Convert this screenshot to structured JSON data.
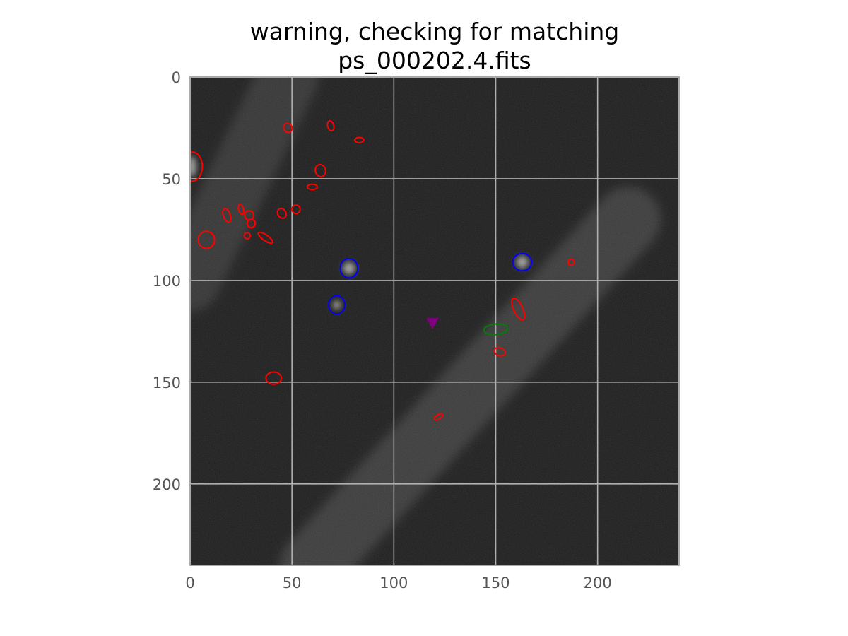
{
  "chart_data": {
    "type": "scatter",
    "subtype": "image-with-ellipse-overlays",
    "title_lines": [
      "warning, checking for matching",
      "ps_000202.4.fits"
    ],
    "xlabel": "",
    "ylabel": "",
    "xlim": [
      0,
      240
    ],
    "ylim": [
      240,
      0
    ],
    "y_axis_inverted": true,
    "grid": true,
    "legend": "none",
    "x_ticks": [
      0,
      50,
      100,
      150,
      200
    ],
    "y_ticks": [
      0,
      50,
      100,
      150,
      200
    ],
    "x_tick_labels": [
      "0",
      "50",
      "100",
      "150",
      "200"
    ],
    "y_tick_labels": [
      "0",
      "50",
      "100",
      "150",
      "200"
    ],
    "colors": {
      "background": "#1b1b1b",
      "grid": "#b0b0b0",
      "spine": "#aaaaaa",
      "red_series": "#ff0000",
      "blue_series": "#0000ff",
      "green_series": "#008000",
      "marker": "#800080"
    },
    "bright_sources": [
      {
        "x": 1,
        "y": 44,
        "sx": 2,
        "sy": 5
      },
      {
        "x": 78,
        "y": 94,
        "sx": 3,
        "sy": 3
      },
      {
        "x": 163,
        "y": 91,
        "sx": 3,
        "sy": 3
      },
      {
        "x": 72,
        "y": 112,
        "sx": 2,
        "sy": 2
      }
    ],
    "streaks": [
      {
        "from": [
          48,
          0
        ],
        "to": [
          0,
          100
        ],
        "width": 30,
        "opacity": 0.1
      },
      {
        "from": [
          215,
          70
        ],
        "to": [
          60,
          240
        ],
        "width": 32,
        "opacity": 0.13
      }
    ],
    "series": [
      {
        "color": "red",
        "ellipses": [
          {
            "x": 48,
            "y": 25,
            "rx": 2,
            "ry": 2.3,
            "angle": -25
          },
          {
            "x": 69,
            "y": 24,
            "rx": 1.5,
            "ry": 2.5,
            "angle": -15
          },
          {
            "x": 83,
            "y": 31,
            "rx": 2.2,
            "ry": 1.3,
            "angle": 0
          },
          {
            "x": 1,
            "y": 44,
            "rx": 5,
            "ry": 7.2,
            "angle": 0
          },
          {
            "x": 64,
            "y": 46,
            "rx": 2.5,
            "ry": 3,
            "angle": -15
          },
          {
            "x": 60,
            "y": 54,
            "rx": 2.5,
            "ry": 1.3,
            "angle": 0
          },
          {
            "x": 18,
            "y": 68,
            "rx": 1.7,
            "ry": 3.5,
            "angle": -20
          },
          {
            "x": 25,
            "y": 65,
            "rx": 1.2,
            "ry": 2.6,
            "angle": -15
          },
          {
            "x": 29,
            "y": 68,
            "rx": 2.2,
            "ry": 2.3,
            "angle": 0
          },
          {
            "x": 30,
            "y": 72,
            "rx": 2,
            "ry": 2,
            "angle": 0
          },
          {
            "x": 45,
            "y": 67,
            "rx": 2,
            "ry": 2.5,
            "angle": -30
          },
          {
            "x": 52,
            "y": 65,
            "rx": 2,
            "ry": 2.1,
            "angle": 0
          },
          {
            "x": 37,
            "y": 79,
            "rx": 4.2,
            "ry": 1.4,
            "angle": 35
          },
          {
            "x": 28,
            "y": 78,
            "rx": 1.5,
            "ry": 1.5,
            "angle": 0
          },
          {
            "x": 8,
            "y": 80,
            "rx": 4,
            "ry": 4.2,
            "angle": 0
          },
          {
            "x": 187,
            "y": 91,
            "rx": 1.5,
            "ry": 1.5,
            "angle": 0
          },
          {
            "x": 161,
            "y": 114,
            "rx": 2.2,
            "ry": 5.8,
            "angle": -25
          },
          {
            "x": 152,
            "y": 135,
            "rx": 2.8,
            "ry": 2,
            "angle": 20
          },
          {
            "x": 41,
            "y": 148,
            "rx": 3.8,
            "ry": 3,
            "angle": 0
          },
          {
            "x": 122,
            "y": 167,
            "rx": 2.3,
            "ry": 1.1,
            "angle": -30
          }
        ]
      },
      {
        "color": "blue",
        "ellipses": [
          {
            "x": 78,
            "y": 94,
            "rx": 4.3,
            "ry": 4.8,
            "angle": 0
          },
          {
            "x": 72,
            "y": 112,
            "rx": 4,
            "ry": 4.5,
            "angle": 0
          },
          {
            "x": 163,
            "y": 91,
            "rx": 4.6,
            "ry": 4.3,
            "angle": 0
          }
        ]
      },
      {
        "color": "green",
        "ellipses": [
          {
            "x": 150,
            "y": 124,
            "rx": 5.8,
            "ry": 2.6,
            "angle": -5
          }
        ]
      }
    ],
    "markers": [
      {
        "shape": "triangle-down",
        "x": 119,
        "y": 121,
        "color": "purple"
      }
    ]
  }
}
